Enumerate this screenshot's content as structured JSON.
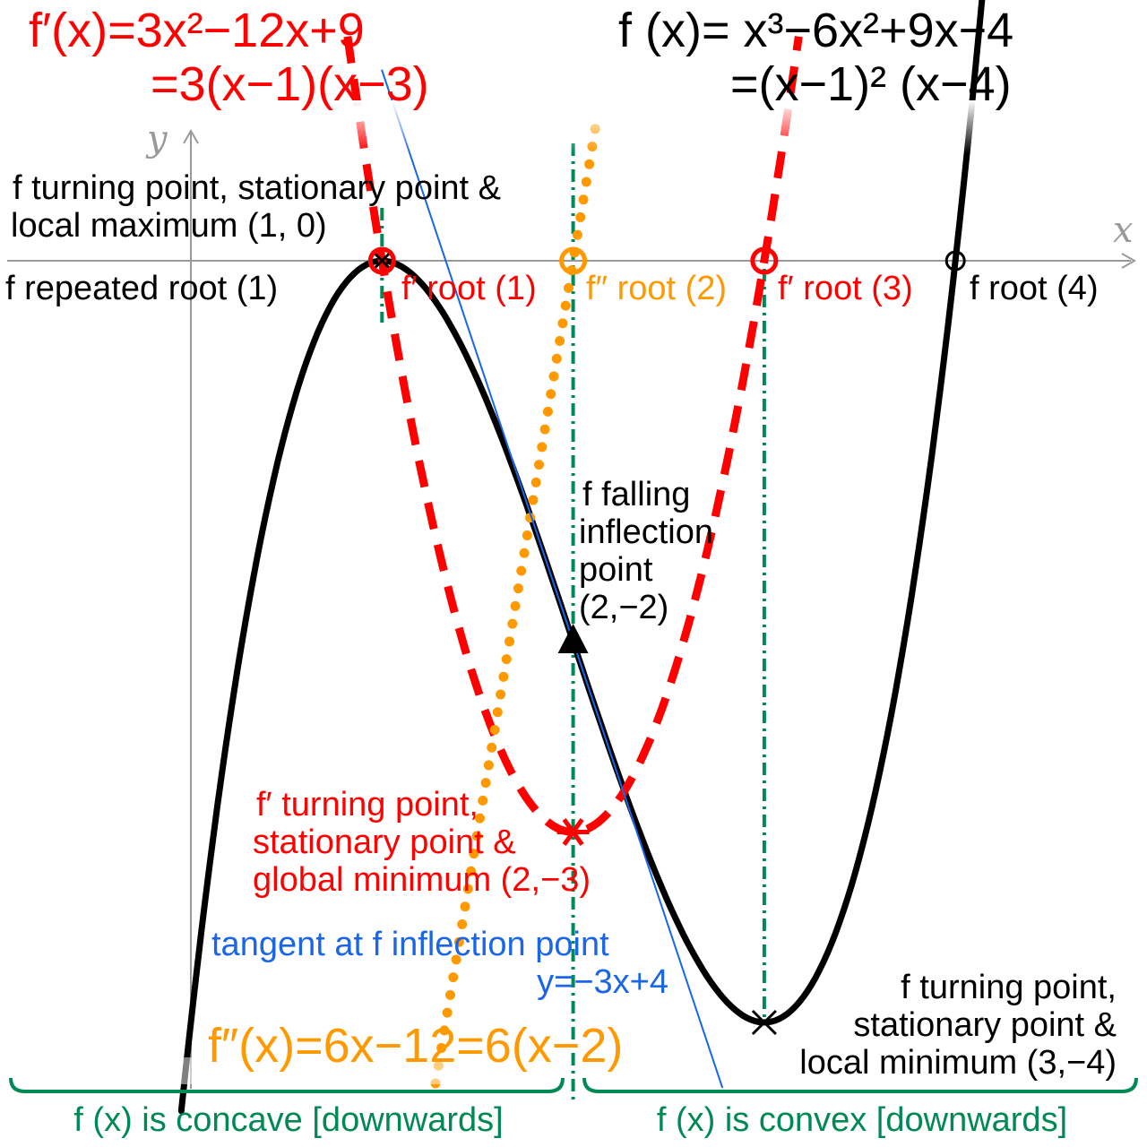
{
  "colors": {
    "f": "#000000",
    "fprime": "#ff0000",
    "fdouble": "#ff9900",
    "tangent": "#1a66e6",
    "guide": "#008855",
    "axis": "#999999"
  },
  "equations": {
    "fprime_line1": "f′(x)=3x²−12x+9",
    "fprime_line2": "=3(x−1)(x−3)",
    "f_line1": "f (x)= x³−6x²+9x−4",
    "f_line2": "=(x−1)² (x−4)",
    "fdouble": "f″(x)=6x−12=6(x−2)"
  },
  "axes": {
    "x_label": "x",
    "y_label": "y"
  },
  "annotations": {
    "local_max_line1": "f  turning point, stationary point &",
    "local_max_line2": "local maximum (1, 0)",
    "repeated_root": "f  repeated root (1)",
    "fprime_root1": "f′ root (1)",
    "fdouble_root": "f″ root (2)",
    "fprime_root3": "f′ root (3)",
    "f_root4": "f  root (4)",
    "inflection_line1": "f falling",
    "inflection_line2": "inflection",
    "inflection_line3": "point",
    "inflection_line4": "(2,−2)",
    "fprime_min_line1": "f′ turning point,",
    "fprime_min_line2": "stationary point &",
    "fprime_min_line3": "global minimum (2,−3)",
    "tangent_line1": "tangent at f  inflection point",
    "tangent_line2": "y=−3x+4",
    "local_min_line1": "f  turning point,",
    "local_min_line2": "stationary point &",
    "local_min_line3": "local minimum (3,−4)",
    "concave": "f (x) is concave [downwards]",
    "convex": "f (x) is convex [downwards]"
  },
  "chart_data": {
    "type": "line",
    "xlim": [
      -0.95,
      5.0
    ],
    "ylim": [
      -4.3,
      1.0
    ],
    "grid": false,
    "series": [
      {
        "name": "f(x)",
        "style": "solid",
        "color": "#000000",
        "x": [
          -0.05,
          0,
          0.25,
          0.5,
          0.75,
          1,
          1.25,
          1.5,
          1.75,
          2,
          2.25,
          2.5,
          2.75,
          3,
          3.25,
          3.5,
          3.75,
          4,
          4.15
        ],
        "y": [
          -4.46,
          -4,
          -2.95,
          -1.75,
          -0.7,
          0,
          -0.06,
          -0.63,
          -1.27,
          -2,
          -2.73,
          -3.38,
          -3.86,
          -4,
          -3.8,
          -3.13,
          -1.95,
          0,
          1.38
        ]
      },
      {
        "name": "f′(x)",
        "style": "dashed",
        "color": "#ff0000",
        "x": [
          0.82,
          1,
          1.25,
          1.5,
          1.75,
          2,
          2.25,
          2.5,
          2.75,
          3,
          3.18
        ],
        "y": [
          2.18,
          0,
          -1.31,
          -2.25,
          -2.81,
          -3,
          -2.81,
          -2.25,
          -1.31,
          0,
          2.18
        ]
      },
      {
        "name": "f″(x)",
        "style": "dotted",
        "color": "#ff9900",
        "x": [
          1.28,
          2,
          2.12
        ],
        "y": [
          -4.32,
          0,
          0.72
        ]
      },
      {
        "name": "tangent",
        "style": "thin",
        "color": "#1a66e6",
        "x": [
          1.0,
          2.78
        ],
        "y": [
          1.0,
          -4.34
        ]
      }
    ],
    "markers": [
      {
        "label": "local maximum",
        "x": 1,
        "y": 0,
        "shape": "circle-x"
      },
      {
        "label": "f′ root 1",
        "x": 1,
        "y": 0,
        "shape": "circle"
      },
      {
        "label": "f″ root",
        "x": 2,
        "y": 0,
        "shape": "circle"
      },
      {
        "label": "f′ root 3",
        "x": 3,
        "y": 0,
        "shape": "circle"
      },
      {
        "label": "f root 4",
        "x": 4,
        "y": 0,
        "shape": "circle"
      },
      {
        "label": "inflection point",
        "x": 2,
        "y": -2,
        "shape": "triangle"
      },
      {
        "label": "f′ global minimum",
        "x": 2,
        "y": -3,
        "shape": "asterisk"
      },
      {
        "label": "local minimum",
        "x": 3,
        "y": -4,
        "shape": "x"
      }
    ],
    "guide_lines_x": [
      1,
      2,
      3
    ]
  }
}
